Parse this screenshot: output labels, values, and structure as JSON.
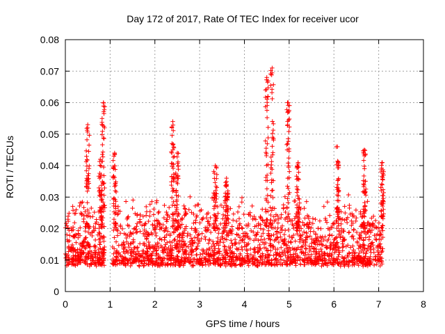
{
  "chart_data": {
    "type": "scatter",
    "title": "Day 172 of 2017, Rate Of TEC Index for receiver ucor",
    "xlabel": "GPS time / hours",
    "ylabel": "ROTI / TECUs",
    "xlim": [
      0,
      8
    ],
    "ylim": [
      0,
      0.08
    ],
    "xticks": [
      "0",
      "1",
      "2",
      "3",
      "4",
      "5",
      "6",
      "7",
      "8"
    ],
    "yticks": [
      "0",
      "0.01",
      "0.02",
      "0.03",
      "0.04",
      "0.05",
      "0.06",
      "0.07",
      "0.08"
    ],
    "grid": true,
    "marker": "+",
    "color": "#ff0000",
    "data_range_x": [
      0,
      7.1
    ],
    "gap_x": [
      0.88,
      1.05
    ],
    "baseline_y": [
      0.005,
      0.03
    ],
    "bursts": [
      {
        "x": 0.5,
        "peak": 0.053
      },
      {
        "x": 0.78,
        "peak": 0.042
      },
      {
        "x": 0.85,
        "peak": 0.06
      },
      {
        "x": 1.1,
        "peak": 0.044
      },
      {
        "x": 2.4,
        "peak": 0.054
      },
      {
        "x": 2.5,
        "peak": 0.044
      },
      {
        "x": 3.35,
        "peak": 0.04
      },
      {
        "x": 3.6,
        "peak": 0.036
      },
      {
        "x": 4.5,
        "peak": 0.068
      },
      {
        "x": 4.62,
        "peak": 0.071
      },
      {
        "x": 4.98,
        "peak": 0.06
      },
      {
        "x": 5.2,
        "peak": 0.041
      },
      {
        "x": 6.08,
        "peak": 0.046
      },
      {
        "x": 6.68,
        "peak": 0.045
      },
      {
        "x": 7.08,
        "peak": 0.041
      }
    ]
  }
}
